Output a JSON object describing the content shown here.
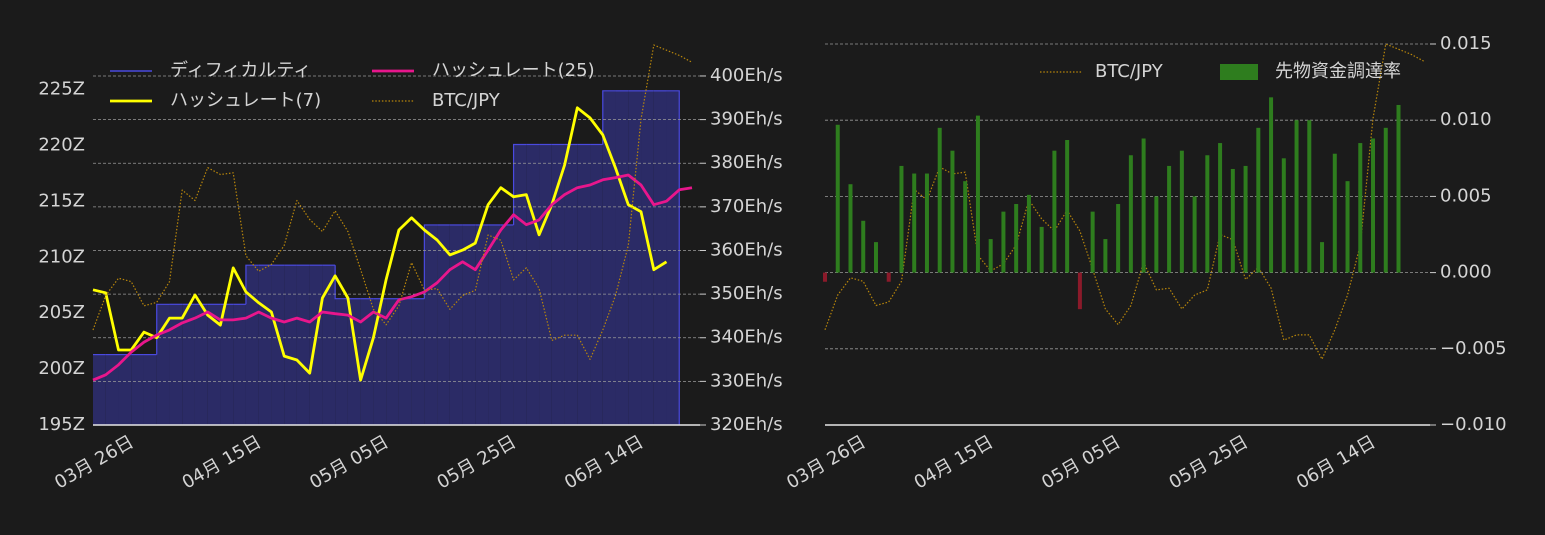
{
  "chart_data": [
    {
      "type": "line",
      "categories": [
        null,
        null,
        "03月 26日",
        null,
        null,
        null,
        null,
        null,
        null,
        null,
        null,
        null,
        "04月 15日",
        null,
        null,
        null,
        null,
        null,
        null,
        null,
        null,
        null,
        "05月 05日",
        null,
        null,
        null,
        null,
        null,
        null,
        null,
        null,
        null,
        "05月 25日",
        null,
        null,
        null,
        null,
        null,
        null,
        null,
        null,
        null,
        "06月 14日",
        null,
        null,
        null,
        null,
        null
      ],
      "series": [
        {
          "name": "ディフィカルティ",
          "color": "#4a4ae0",
          "fill": "#2b2b66",
          "step": true,
          "axis": "y",
          "values": [
            201.3,
            201.3,
            201.3,
            201.3,
            201.3,
            205.8,
            205.8,
            205.8,
            205.8,
            205.8,
            205.8,
            205.8,
            209.3,
            209.3,
            209.3,
            209.3,
            209.3,
            209.3,
            209.3,
            206.3,
            206.3,
            206.3,
            206.3,
            206.3,
            206.3,
            206.3,
            212.9,
            212.9,
            212.9,
            212.9,
            212.9,
            212.9,
            212.9,
            220.1,
            220.1,
            220.1,
            220.1,
            220.1,
            220.1,
            220.1,
            224.9,
            224.9,
            224.9,
            224.9,
            224.9,
            224.9,
            null,
            null
          ]
        },
        {
          "name": "ハッシュレート(7)",
          "color": "#ffff00",
          "axis": "y2",
          "values": [
            351.0,
            350.3,
            337.2,
            337.2,
            341.3,
            340.0,
            344.5,
            344.5,
            349.8,
            345.2,
            342.9,
            356.0,
            350.5,
            348.0,
            345.9,
            335.8,
            334.9,
            331.9,
            349.1,
            354.2,
            349.1,
            330.3,
            340.0,
            353.3,
            364.7,
            367.5,
            364.7,
            362.4,
            359.0,
            360.1,
            361.7,
            370.5,
            374.4,
            372.3,
            372.8,
            363.6,
            370.5,
            379.6,
            392.7,
            390.4,
            386.5,
            378.9,
            370.5,
            368.9,
            355.6,
            357.4,
            null,
            null
          ]
        },
        {
          "name": "ハッシュレート(25)",
          "color": "#e8168c",
          "axis": "y2",
          "values": [
            330.3,
            331.5,
            333.8,
            336.7,
            339.0,
            340.6,
            341.8,
            343.4,
            344.5,
            345.9,
            344.1,
            344.1,
            344.5,
            345.9,
            344.5,
            343.6,
            344.5,
            343.6,
            345.9,
            345.5,
            345.2,
            343.6,
            345.9,
            344.5,
            348.7,
            349.4,
            350.5,
            352.6,
            355.6,
            357.4,
            355.6,
            360.1,
            364.7,
            368.2,
            365.9,
            367.0,
            370.5,
            372.8,
            374.4,
            375.0,
            376.2,
            376.7,
            377.3,
            375.0,
            370.5,
            371.3,
            373.9,
            374.4
          ]
        },
        {
          "name": "BTC/JPY",
          "color": "#b8860b",
          "axis": "y3",
          "linestyle": "dotted",
          "values": [
            9550000,
            9750000,
            9850000,
            9830000,
            9690000,
            9710000,
            9830000,
            10360000,
            10300000,
            10490000,
            10450000,
            10460000,
            9980000,
            9890000,
            9930000,
            10040000,
            10300000,
            10190000,
            10120000,
            10240000,
            10120000,
            9900000,
            9670000,
            9580000,
            9690000,
            9940000,
            9780000,
            9790000,
            9670000,
            9750000,
            9780000,
            10100000,
            10070000,
            9840000,
            9910000,
            9790000,
            9490000,
            9520000,
            9520000,
            9380000,
            9550000,
            9750000,
            10040000,
            10770000,
            11200000,
            11170000,
            11140000,
            11100000
          ]
        }
      ],
      "ylim": [
        195,
        229
      ],
      "yticks": [
        {
          "value": 195,
          "label": "195Z"
        },
        {
          "value": 200,
          "label": "200Z"
        },
        {
          "value": 205,
          "label": "205Z"
        },
        {
          "value": 210,
          "label": "210Z"
        },
        {
          "value": 215,
          "label": "215Z"
        },
        {
          "value": 220,
          "label": "220Z"
        },
        {
          "value": 225,
          "label": "225Z"
        }
      ],
      "y_axis_position": "left",
      "y2lim": [
        320,
        407.1
      ],
      "y2ticks": [
        {
          "value": 320,
          "label": "320Eh/s"
        },
        {
          "value": 330,
          "label": "330Eh/s"
        },
        {
          "value": 340,
          "label": "340Eh/s"
        },
        {
          "value": 350,
          "label": "350Eh/s"
        },
        {
          "value": 360,
          "label": "360Eh/s"
        },
        {
          "value": 370,
          "label": "370Eh/s"
        },
        {
          "value": 380,
          "label": "380Eh/s"
        },
        {
          "value": 390,
          "label": "390Eh/s"
        },
        {
          "value": 400,
          "label": "400Eh/s"
        }
      ],
      "y3lim": [
        9000000,
        11200000
      ],
      "grid": "y2",
      "legend": "upper left",
      "legend_columns": 2
    },
    {
      "type": "bar",
      "categories": [
        null,
        null,
        "03月 26日",
        null,
        null,
        null,
        null,
        null,
        null,
        null,
        null,
        null,
        "04月 15日",
        null,
        null,
        null,
        null,
        null,
        null,
        null,
        null,
        null,
        "05月 05日",
        null,
        null,
        null,
        null,
        null,
        null,
        null,
        null,
        null,
        "05月 25日",
        null,
        null,
        null,
        null,
        null,
        null,
        null,
        null,
        null,
        "06月 14日",
        null,
        null,
        null,
        null,
        null
      ],
      "series": [
        {
          "name": "BTC/JPY",
          "type": "line",
          "color": "#b8860b",
          "axis": "y3",
          "linestyle": "dotted",
          "values": [
            9550000,
            9750000,
            9850000,
            9830000,
            9690000,
            9710000,
            9830000,
            10360000,
            10300000,
            10490000,
            10450000,
            10460000,
            9980000,
            9890000,
            9930000,
            10040000,
            10300000,
            10190000,
            10120000,
            10240000,
            10120000,
            9900000,
            9670000,
            9580000,
            9690000,
            9940000,
            9780000,
            9790000,
            9670000,
            9750000,
            9780000,
            10100000,
            10070000,
            9840000,
            9910000,
            9790000,
            9490000,
            9520000,
            9520000,
            9380000,
            9550000,
            9750000,
            10040000,
            10770000,
            11200000,
            11170000,
            11140000,
            11100000
          ]
        },
        {
          "name": "先物資金調達率",
          "type": "bar",
          "color": "#2e7d1e",
          "negative_color": "#8b1a2a",
          "axis": "y",
          "values": [
            -0.0006,
            0.0097,
            0.0058,
            0.0034,
            0.002,
            -0.0006,
            0.007,
            0.0065,
            0.0065,
            0.0095,
            0.008,
            0.006,
            0.0103,
            0.0022,
            0.004,
            0.0045,
            0.0051,
            0.003,
            0.008,
            0.0087,
            -0.0024,
            0.004,
            0.0022,
            0.0045,
            0.0077,
            0.0088,
            0.005,
            0.007,
            0.008,
            0.005,
            0.0077,
            0.0085,
            0.0068,
            0.007,
            0.0095,
            0.0115,
            0.0075,
            0.01,
            0.01,
            0.002,
            0.0078,
            0.006,
            0.0085,
            0.0088,
            0.0095,
            0.011,
            null,
            null
          ]
        }
      ],
      "ylim": [
        -0.01,
        0.015
      ],
      "yticks": [
        {
          "value": -0.01,
          "label": "−0.010"
        },
        {
          "value": -0.005,
          "label": "−0.005"
        },
        {
          "value": 0,
          "label": "0.000"
        },
        0.005,
        {
          "value": 0.01,
          "label": "0.010"
        },
        0.015
      ],
      "y_axis_position": "right",
      "y3lim": [
        9000000,
        11200000
      ],
      "grid": "y",
      "legend": "upper right",
      "legend_columns": 2
    }
  ]
}
